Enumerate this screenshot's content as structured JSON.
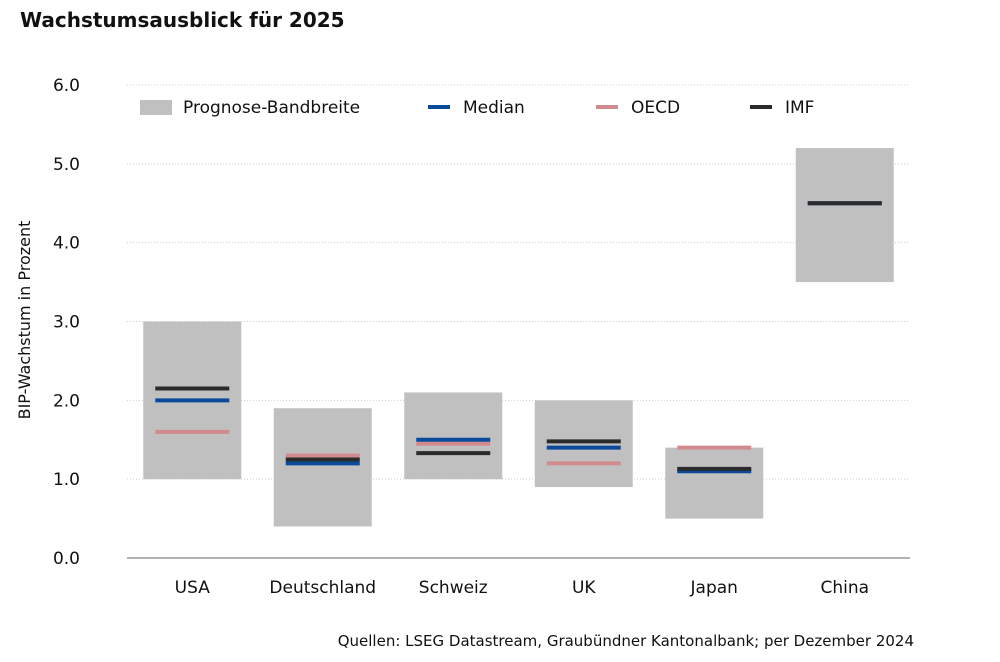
{
  "title": "Wachstumsausblick für 2025",
  "source": "Quellen: LSEG Datastream, Graubündner Kantonalbank; per Dezember 2024",
  "colors": {
    "band": "#c0c0c0",
    "median": "#0b4a9a",
    "oecd": "#d18a8e",
    "imf": "#2b2b2b",
    "grid": "#cccccc",
    "axis": "#999999"
  },
  "chart_data": {
    "type": "range-bar",
    "title": "Wachstumsausblick für 2025",
    "xlabel": "",
    "ylabel": "BIP-Wachstum in Prozent",
    "ylim": [
      0,
      6
    ],
    "yticks": [
      "0.0",
      "1.0",
      "2.0",
      "3.0",
      "4.0",
      "5.0",
      "6.0"
    ],
    "grid": true,
    "legend_position": "top",
    "categories": [
      "USA",
      "Deutschland",
      "Schweiz",
      "UK",
      "Japan",
      "China"
    ],
    "series": [
      {
        "name": "Prognose-Bandbreite",
        "kind": "band",
        "low": [
          1.0,
          0.4,
          1.0,
          0.9,
          0.5,
          3.5
        ],
        "high": [
          3.0,
          1.9,
          2.1,
          2.0,
          1.4,
          5.2
        ]
      },
      {
        "name": "Median",
        "kind": "marker",
        "values": [
          2.0,
          1.2,
          1.5,
          1.4,
          1.1,
          4.5
        ]
      },
      {
        "name": "OECD",
        "kind": "marker",
        "values": [
          1.6,
          1.3,
          1.45,
          1.2,
          1.4,
          4.5
        ]
      },
      {
        "name": "IMF",
        "kind": "marker",
        "values": [
          2.15,
          1.25,
          1.33,
          1.48,
          1.13,
          4.5
        ]
      }
    ]
  }
}
